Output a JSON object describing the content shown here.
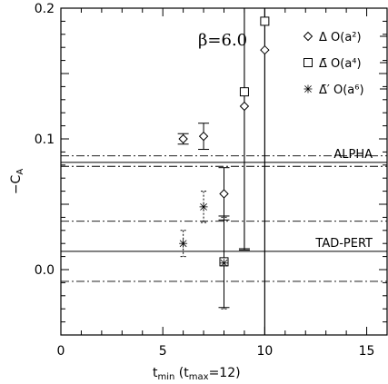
{
  "chart_data": {
    "type": "scatter",
    "xlim": [
      0,
      16
    ],
    "ylim": [
      -0.05,
      0.2
    ],
    "x_ticks": [
      0,
      5,
      10,
      15
    ],
    "x_tick_labels": [
      "0",
      "5",
      "10",
      "15"
    ],
    "y_ticks": [
      0.0,
      0.1,
      0.2
    ],
    "y_tick_labels": [
      "0.0",
      "0.1",
      "0.2"
    ],
    "xlabel": "t_min (t_max=12)",
    "ylabel": "−C_A",
    "annotation": "β=6.0",
    "series": [
      {
        "name": "Δ O(a²)",
        "marker": "diamond",
        "points": [
          {
            "x": 6,
            "y": 0.1,
            "err": 0.004
          },
          {
            "x": 7,
            "y": 0.102,
            "err": 0.01
          },
          {
            "x": 8,
            "y": 0.058,
            "err": 0.02
          },
          {
            "x": 9,
            "y": 0.125,
            "err": 0.11
          },
          {
            "x": 10,
            "y": 0.168,
            "err": 0.25
          }
        ]
      },
      {
        "name": "Δ̄ O(a⁴)",
        "marker": "square",
        "points": [
          {
            "x": 8,
            "y": 0.006,
            "err": 0.035
          },
          {
            "x": 9,
            "y": 0.136,
            "err": 0.12
          },
          {
            "x": 10,
            "y": 0.19,
            "err": 0.3
          }
        ]
      },
      {
        "name": "Δ̄′ O(a⁶)",
        "marker": "burst",
        "points": [
          {
            "x": 6,
            "y": 0.02,
            "err": 0.01
          },
          {
            "x": 7,
            "y": 0.048,
            "err": 0.012
          },
          {
            "x": 8,
            "y": 0.005,
            "err": 0.035
          }
        ]
      }
    ],
    "reference_bands": [
      {
        "label": "ALPHA",
        "center": 0.082,
        "lower": 0.079,
        "upper": 0.087
      },
      {
        "label": "TAD-PERT",
        "center": 0.014,
        "lower": -0.009,
        "upper": 0.037
      }
    ]
  }
}
